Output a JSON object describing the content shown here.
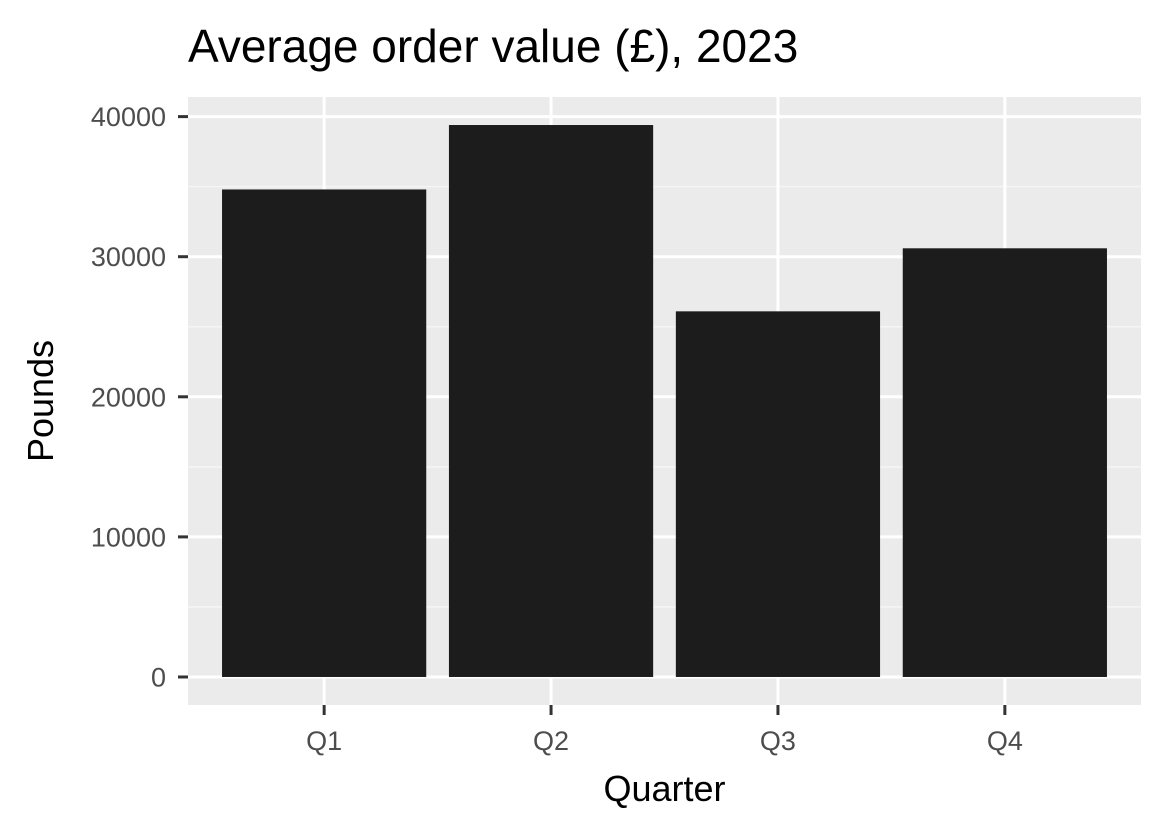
{
  "chart_data": {
    "type": "bar",
    "title": "Average order value (£), 2023",
    "xlabel": "Quarter",
    "ylabel": "Pounds",
    "categories": [
      "Q1",
      "Q2",
      "Q3",
      "Q4"
    ],
    "values": [
      34800,
      39400,
      26100,
      30600
    ],
    "ylim": [
      -2000,
      41400
    ],
    "yticks": [
      0,
      10000,
      20000,
      30000,
      40000
    ],
    "ytick_labels": [
      "0",
      "10000",
      "20000",
      "30000",
      "40000"
    ],
    "grid": true,
    "legend": "none",
    "colors": {
      "bar": "#1c1c1c",
      "panel": "#ebebeb",
      "grid_major": "#ffffff",
      "grid_minor": "#f5f5f5",
      "tick_text": "#4d4d4d",
      "tick_mark": "#333333"
    }
  }
}
